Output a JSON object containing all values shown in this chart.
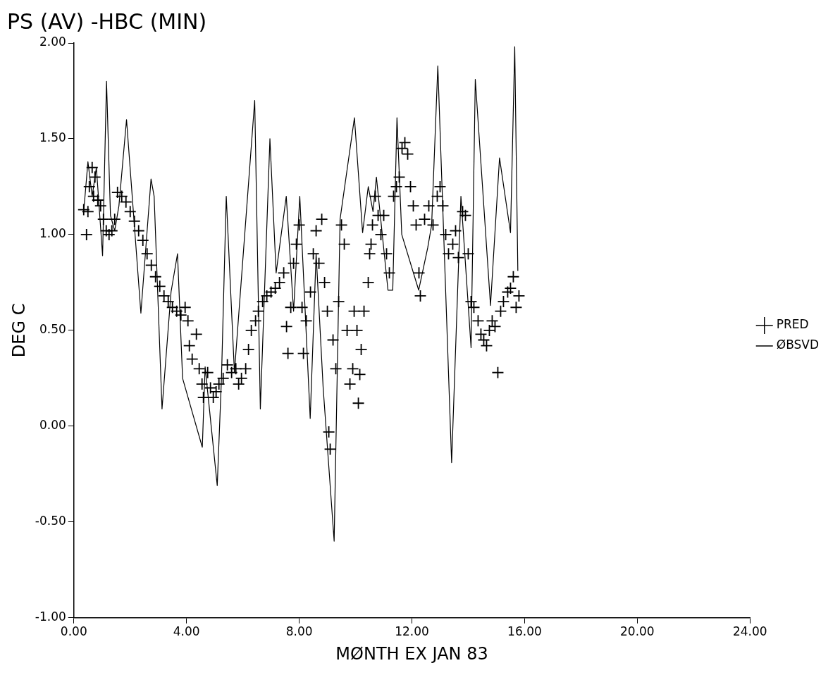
{
  "chart_data": {
    "type": "scatter",
    "title": "PS (AV) -HBC (MIN)",
    "xlabel": "MØNTH EX JAN 83",
    "ylabel": "DEG C",
    "xlim": [
      0,
      24
    ],
    "xticks": [
      {
        "value": 0,
        "label": "0.00"
      },
      {
        "value": 4,
        "label": "4.00"
      },
      {
        "value": 8,
        "label": "8.00"
      },
      {
        "value": 12,
        "label": "12.00"
      },
      {
        "value": 16,
        "label": "16.00"
      },
      {
        "value": 20,
        "label": "20.00"
      },
      {
        "value": 24,
        "label": "24.00"
      }
    ],
    "ylim": [
      -1,
      2
    ],
    "yticks": [
      {
        "value": -1,
        "label": "-1.00"
      },
      {
        "value": -0.5,
        "label": "-0.50"
      },
      {
        "value": 0,
        "label": "0.00"
      },
      {
        "value": 0.5,
        "label": "0.50"
      },
      {
        "value": 1,
        "label": "1.00"
      },
      {
        "value": 1.5,
        "label": "1.50"
      },
      {
        "value": 2,
        "label": "2.00"
      }
    ],
    "grid": false,
    "legend": "right",
    "series": [
      {
        "name": "PRED",
        "marker": "cross",
        "color": "#000000",
        "x": [
          0.35,
          0.45,
          0.5,
          0.55,
          0.65,
          0.7,
          0.75,
          0.85,
          0.95,
          1.05,
          1.15,
          1.25,
          1.35,
          1.45,
          1.55,
          1.7,
          1.85,
          2.0,
          2.15,
          2.3,
          2.45,
          2.6,
          2.75,
          2.9,
          3.05,
          3.2,
          3.35,
          3.5,
          3.65,
          3.8,
          3.95,
          4.05,
          4.1,
          4.2,
          4.35,
          4.45,
          4.55,
          4.6,
          4.75,
          4.85,
          4.95,
          5.05,
          5.15,
          5.3,
          5.45,
          5.6,
          5.75,
          5.85,
          5.95,
          6.1,
          6.2,
          6.3,
          6.45,
          6.55,
          6.7,
          6.85,
          7.0,
          7.15,
          7.3,
          7.45,
          7.55,
          7.6,
          7.7,
          7.8,
          7.9,
          8.0,
          8.1,
          8.15,
          8.25,
          8.4,
          8.5,
          8.6,
          8.7,
          8.8,
          8.9,
          9.0,
          9.05,
          9.1,
          9.2,
          9.3,
          9.4,
          9.5,
          9.6,
          9.7,
          9.8,
          9.9,
          9.95,
          10.05,
          10.1,
          10.15,
          10.2,
          10.3,
          10.45,
          10.5,
          10.55,
          10.6,
          10.7,
          10.8,
          10.9,
          11.0,
          11.1,
          11.2,
          11.35,
          11.45,
          11.55,
          11.65,
          11.75,
          11.85,
          11.95,
          12.05,
          12.15,
          12.25,
          12.3,
          12.45,
          12.6,
          12.75,
          12.9,
          13.0,
          13.1,
          13.2,
          13.3,
          13.45,
          13.55,
          13.65,
          13.8,
          13.9,
          14.0,
          14.1,
          14.2,
          14.35,
          14.45,
          14.55,
          14.65,
          14.75,
          14.85,
          14.95,
          15.05,
          15.15,
          15.25,
          15.4,
          15.5,
          15.6,
          15.7,
          15.8
        ],
        "values": [
          1.13,
          1.0,
          1.12,
          1.25,
          1.35,
          1.2,
          1.3,
          1.18,
          1.15,
          1.08,
          1.02,
          1.0,
          1.02,
          1.08,
          1.22,
          1.2,
          1.17,
          1.12,
          1.07,
          1.02,
          0.97,
          0.9,
          0.84,
          0.78,
          0.73,
          0.68,
          0.65,
          0.62,
          0.6,
          0.58,
          0.62,
          0.55,
          0.42,
          0.35,
          0.48,
          0.3,
          0.22,
          0.15,
          0.28,
          0.2,
          0.15,
          0.18,
          0.22,
          0.25,
          0.32,
          0.28,
          0.3,
          0.22,
          0.25,
          0.3,
          0.4,
          0.5,
          0.55,
          0.6,
          0.65,
          0.68,
          0.7,
          0.72,
          0.75,
          0.8,
          0.52,
          0.38,
          0.62,
          0.85,
          0.95,
          1.05,
          0.62,
          0.38,
          0.55,
          0.7,
          0.9,
          1.02,
          0.85,
          1.08,
          0.75,
          0.6,
          -0.03,
          -0.12,
          0.45,
          0.3,
          0.65,
          1.05,
          0.95,
          0.5,
          0.22,
          0.3,
          0.6,
          0.5,
          0.12,
          0.27,
          0.4,
          0.6,
          0.75,
          0.9,
          0.95,
          1.05,
          1.2,
          1.1,
          1.0,
          1.1,
          0.9,
          0.8,
          1.2,
          1.25,
          1.3,
          1.45,
          1.48,
          1.42,
          1.25,
          1.15,
          1.05,
          0.8,
          0.68,
          1.08,
          1.15,
          1.05,
          1.2,
          1.25,
          1.15,
          1.0,
          0.9,
          0.95,
          1.02,
          0.88,
          1.12,
          1.1,
          0.9,
          0.65,
          0.62,
          0.55,
          0.48,
          0.45,
          0.42,
          0.5,
          0.55,
          0.52,
          0.28,
          0.6,
          0.65,
          0.7,
          0.72,
          0.78,
          0.62,
          0.68
        ]
      },
      {
        "name": "ØBSVD",
        "type": "line",
        "marker": "none",
        "line_style": "solid",
        "color": "#000000",
        "x": [
          0.35,
          0.5,
          0.65,
          0.8,
          1.02,
          1.16,
          1.3,
          1.45,
          1.6,
          1.87,
          2.38,
          2.74,
          2.85,
          3.13,
          3.45,
          3.68,
          3.86,
          4.17,
          4.56,
          4.66,
          5.09,
          5.24,
          5.41,
          5.7,
          6.42,
          6.62,
          6.96,
          7.18,
          7.54,
          7.8,
          8.02,
          8.39,
          8.6,
          8.85,
          9.24,
          9.45,
          9.96,
          10.25,
          10.45,
          10.62,
          10.74,
          11.15,
          11.32,
          11.47,
          11.64,
          12.24,
          12.56,
          12.7,
          12.92,
          13.41,
          13.74,
          14.1,
          14.25,
          14.79,
          15.11,
          15.5,
          15.65,
          15.76
        ],
        "values": [
          1.12,
          1.38,
          1.2,
          1.35,
          0.89,
          1.8,
          1.1,
          1.02,
          1.15,
          1.6,
          0.59,
          1.29,
          1.2,
          0.09,
          0.7,
          0.9,
          0.25,
          0.09,
          -0.11,
          0.31,
          -0.31,
          0.25,
          1.2,
          0.28,
          1.7,
          0.09,
          1.5,
          0.8,
          1.2,
          0.6,
          1.2,
          0.04,
          0.9,
          0.2,
          -0.6,
          1.08,
          1.61,
          1.01,
          1.25,
          1.12,
          1.3,
          0.71,
          0.71,
          1.61,
          1.0,
          0.71,
          0.93,
          1.05,
          1.88,
          -0.19,
          1.2,
          0.41,
          1.81,
          0.63,
          1.4,
          1.01,
          1.98,
          0.81
        ]
      }
    ]
  }
}
